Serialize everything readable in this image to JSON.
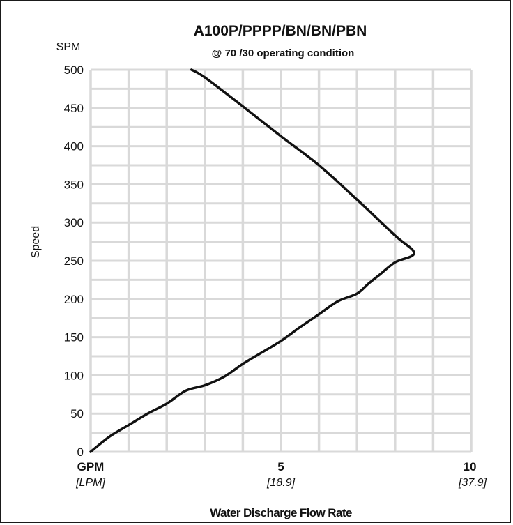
{
  "chart_data": {
    "type": "line",
    "title": "A100P/PPPP/BN/BN/PBN",
    "subtitle": "@ 70 /30  operating condition",
    "ylabel": "Speed",
    "yunit": "SPM",
    "xlabel": "Water Discharge Flow Rate",
    "xlim": [
      0,
      10
    ],
    "ylim": [
      0,
      500
    ],
    "yticks": [
      0,
      50,
      100,
      150,
      200,
      250,
      300,
      350,
      400,
      450,
      500
    ],
    "xticks": [
      {
        "value": 0,
        "label": "GPM",
        "sublabel": "[LPM]"
      },
      {
        "value": 5,
        "label": "5",
        "sublabel": "[18.9]"
      },
      {
        "value": 10,
        "label": "10",
        "sublabel": "[37.9]"
      }
    ],
    "grid": true,
    "series": [
      {
        "values_xy": [
          [
            0,
            0
          ],
          [
            0.5,
            20
          ],
          [
            1.0,
            35
          ],
          [
            1.5,
            50
          ],
          [
            2.0,
            63
          ],
          [
            2.5,
            80
          ],
          [
            3.0,
            87
          ],
          [
            3.5,
            98
          ],
          [
            4.0,
            115
          ],
          [
            4.5,
            130
          ],
          [
            5.0,
            145
          ],
          [
            5.5,
            163
          ],
          [
            6.0,
            180
          ],
          [
            6.5,
            197
          ],
          [
            7.0,
            207
          ],
          [
            7.3,
            220
          ],
          [
            7.6,
            232
          ],
          [
            8.0,
            248
          ],
          [
            8.5,
            260
          ],
          [
            8.0,
            283
          ],
          [
            7.0,
            330
          ],
          [
            6.0,
            375
          ],
          [
            5.0,
            413
          ],
          [
            4.0,
            452
          ],
          [
            3.0,
            490
          ],
          [
            2.65,
            500
          ]
        ]
      }
    ]
  }
}
